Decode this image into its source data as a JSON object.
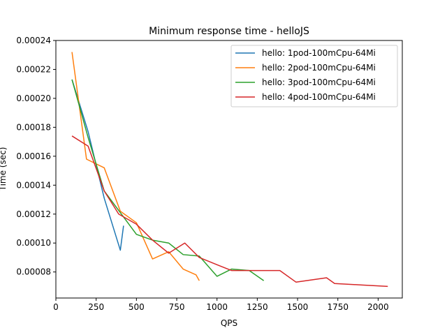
{
  "chart_data": {
    "type": "line",
    "title": "Minimum response time - helloJS",
    "xlabel": "QPS",
    "ylabel": "Time (sec)",
    "xlim": [
      0,
      2150
    ],
    "ylim": [
      6.2e-05,
      0.00024
    ],
    "xticks": [
      0,
      250,
      500,
      750,
      1000,
      1250,
      1500,
      1750,
      2000
    ],
    "yticks": [
      8e-05,
      0.0001,
      0.00012,
      0.00014,
      0.00016,
      0.00018,
      0.0002,
      0.00022,
      0.00024
    ],
    "ytick_labels": [
      "0.00008",
      "0.00010",
      "0.00012",
      "0.00014",
      "0.00016",
      "0.00018",
      "0.00020",
      "0.00022",
      "0.00024"
    ],
    "grid": false,
    "legend_position": "top-right",
    "series": [
      {
        "name": "hello: 1pod-100mCpu-64Mi",
        "color": "#1f77b4",
        "points": [
          [
            100,
            0.000213
          ],
          [
            200,
            0.000177
          ],
          [
            300,
            0.000131
          ],
          [
            400,
            9.5e-05
          ],
          [
            420,
            0.000112
          ]
        ]
      },
      {
        "name": "hello: 2pod-100mCpu-64Mi",
        "color": "#ff7f0e",
        "points": [
          [
            100,
            0.000232
          ],
          [
            190,
            0.000158
          ],
          [
            300,
            0.000152
          ],
          [
            400,
            0.000122
          ],
          [
            500,
            0.000114
          ],
          [
            600,
            8.9e-05
          ],
          [
            700,
            9.4e-05
          ],
          [
            790,
            8.2e-05
          ],
          [
            870,
            7.8e-05
          ],
          [
            890,
            7.4e-05
          ]
        ]
      },
      {
        "name": "hello: 3pod-100mCpu-64Mi",
        "color": "#2ca02c",
        "points": [
          [
            100,
            0.000213
          ],
          [
            200,
            0.000173
          ],
          [
            300,
            0.000136
          ],
          [
            400,
            0.000121
          ],
          [
            500,
            0.000106
          ],
          [
            600,
            0.000102
          ],
          [
            700,
            0.0001
          ],
          [
            790,
            9.2e-05
          ],
          [
            890,
            9.1e-05
          ],
          [
            1000,
            7.7e-05
          ],
          [
            1090,
            8.2e-05
          ],
          [
            1200,
            8.1e-05
          ],
          [
            1290,
            7.4e-05
          ]
        ]
      },
      {
        "name": "hello: 4pod-100mCpu-64Mi",
        "color": "#d62728",
        "points": [
          [
            100,
            0.000174
          ],
          [
            200,
            0.000167
          ],
          [
            300,
            0.000136
          ],
          [
            390,
            0.00012
          ],
          [
            500,
            0.000113
          ],
          [
            600,
            0.000102
          ],
          [
            700,
            9.3e-05
          ],
          [
            800,
            0.0001
          ],
          [
            890,
            9e-05
          ],
          [
            1000,
            8.5e-05
          ],
          [
            1090,
            8.1e-05
          ],
          [
            1200,
            8.1e-05
          ],
          [
            1290,
            8.1e-05
          ],
          [
            1390,
            8.1e-05
          ],
          [
            1490,
            7.3e-05
          ],
          [
            1680,
            7.6e-05
          ],
          [
            1730,
            7.2e-05
          ],
          [
            1900,
            7.1e-05
          ],
          [
            2060,
            7e-05
          ]
        ]
      }
    ]
  }
}
